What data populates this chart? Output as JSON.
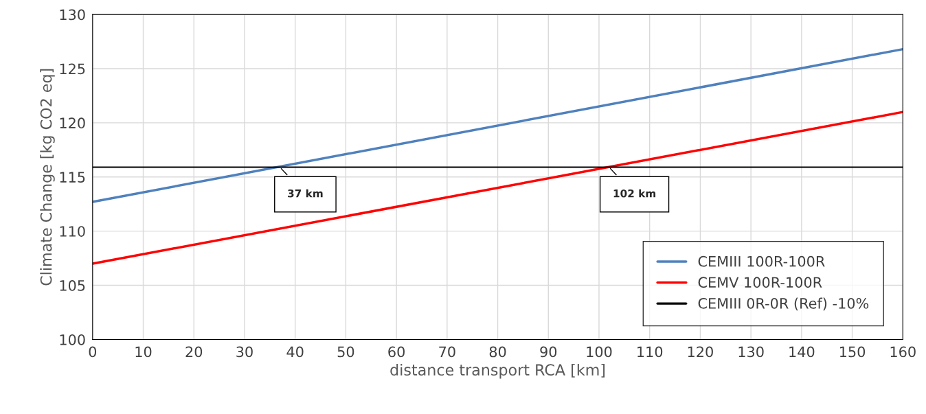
{
  "chart_data": {
    "type": "line",
    "xlabel": "distance transport RCA [km]",
    "ylabel": "Climate Change [kg CO2 eq]",
    "x": [
      0,
      160
    ],
    "series": [
      {
        "name": "CEMIII 100R-100R",
        "color": "#4f81bd",
        "values": [
          112.7,
          126.8
        ]
      },
      {
        "name": "CEMV 100R-100R",
        "color": "#ff0000",
        "values": [
          107.0,
          121.0
        ]
      },
      {
        "name": "CEMIII 0R-0R (Ref) -10%",
        "color": "#000000",
        "values": [
          115.9,
          115.9
        ]
      }
    ],
    "xlim": [
      0,
      160
    ],
    "xticks": [
      0,
      10,
      20,
      30,
      40,
      50,
      60,
      70,
      80,
      90,
      100,
      110,
      120,
      130,
      140,
      150,
      160
    ],
    "ylim": [
      100,
      130
    ],
    "yticks": [
      100,
      105,
      110,
      115,
      120,
      125,
      130
    ],
    "annotations": [
      {
        "text": "37 km",
        "x": 37,
        "y": 115.9
      },
      {
        "text": "102 km",
        "x": 102,
        "y": 115.9
      }
    ],
    "grid": true,
    "legend": "bottom right",
    "marker": "none",
    "line_style": "solid"
  }
}
